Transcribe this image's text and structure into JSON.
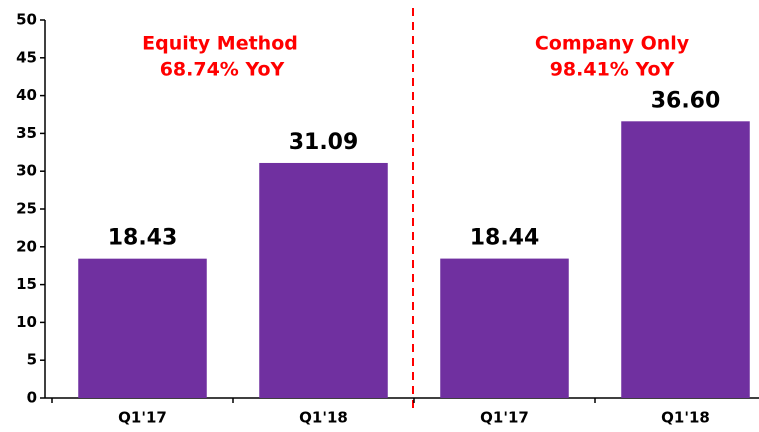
{
  "chart_data": {
    "type": "bar",
    "categories": [
      "Q1'17",
      "Q1'18",
      "Q1'17",
      "Q1'18"
    ],
    "values": [
      18.43,
      31.09,
      18.44,
      36.6
    ],
    "value_labels": [
      "18.43",
      "31.09",
      "18.44",
      "36.60"
    ],
    "color": "#7030a0",
    "ylim": [
      0,
      50
    ],
    "yticks": [
      0,
      5,
      10,
      15,
      20,
      25,
      30,
      35,
      40,
      45,
      50
    ],
    "grid": false,
    "annotations": [
      "Equity Method",
      "68.74% YoY",
      "Company Only",
      "98.41% YoY"
    ],
    "annotation_color": "#ff0000"
  }
}
